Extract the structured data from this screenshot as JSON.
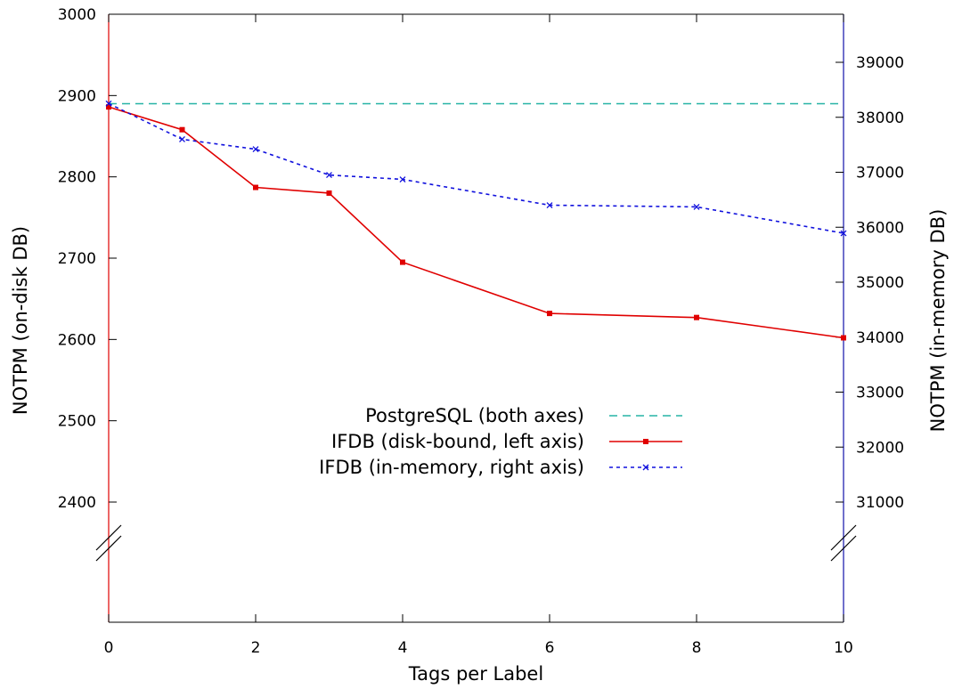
{
  "chart_data": {
    "type": "line",
    "xlabel": "Tags per Label",
    "ylabel_left": "NOTPM (on-disk DB)",
    "ylabel_right": "NOTPM (in-memory DB)",
    "x_ticks": [
      0,
      2,
      4,
      6,
      8,
      10
    ],
    "xlim": [
      0,
      10
    ],
    "left_ticks": [
      2400,
      2500,
      2600,
      2700,
      2800,
      2900,
      3000
    ],
    "left_display_range": [
      2400,
      3000
    ],
    "right_ticks": [
      31000,
      32000,
      33000,
      34000,
      35000,
      36000,
      37000,
      38000,
      39000
    ],
    "right_display_range": [
      31000,
      39000
    ],
    "axis_break": "broken axes between displayed minimum and the x-axis",
    "legend_position": "center-bottom",
    "grid": false,
    "series": [
      {
        "name": "PostgreSQL (both axes)",
        "axis": "left",
        "style": "dashed",
        "color": "#26b3a5",
        "x": [
          0,
          10
        ],
        "y": [
          2890,
          2890
        ]
      },
      {
        "name": "IFDB (disk-bound, left axis)",
        "axis": "left",
        "style": "solid",
        "marker": "square",
        "color": "#e00000",
        "x": [
          0,
          1,
          2,
          3,
          4,
          6,
          8,
          10
        ],
        "y": [
          2886,
          2858,
          2787,
          2780,
          2695,
          2632,
          2627,
          2602
        ]
      },
      {
        "name": "IFDB (in-memory, right axis)",
        "axis": "right",
        "style": "dotted",
        "marker": "x",
        "color": "#1010dd",
        "x": [
          0,
          1,
          2,
          3,
          4,
          6,
          8,
          10
        ],
        "y": [
          38250,
          37600,
          37420,
          36950,
          36870,
          36400,
          36370,
          35890
        ]
      }
    ]
  }
}
